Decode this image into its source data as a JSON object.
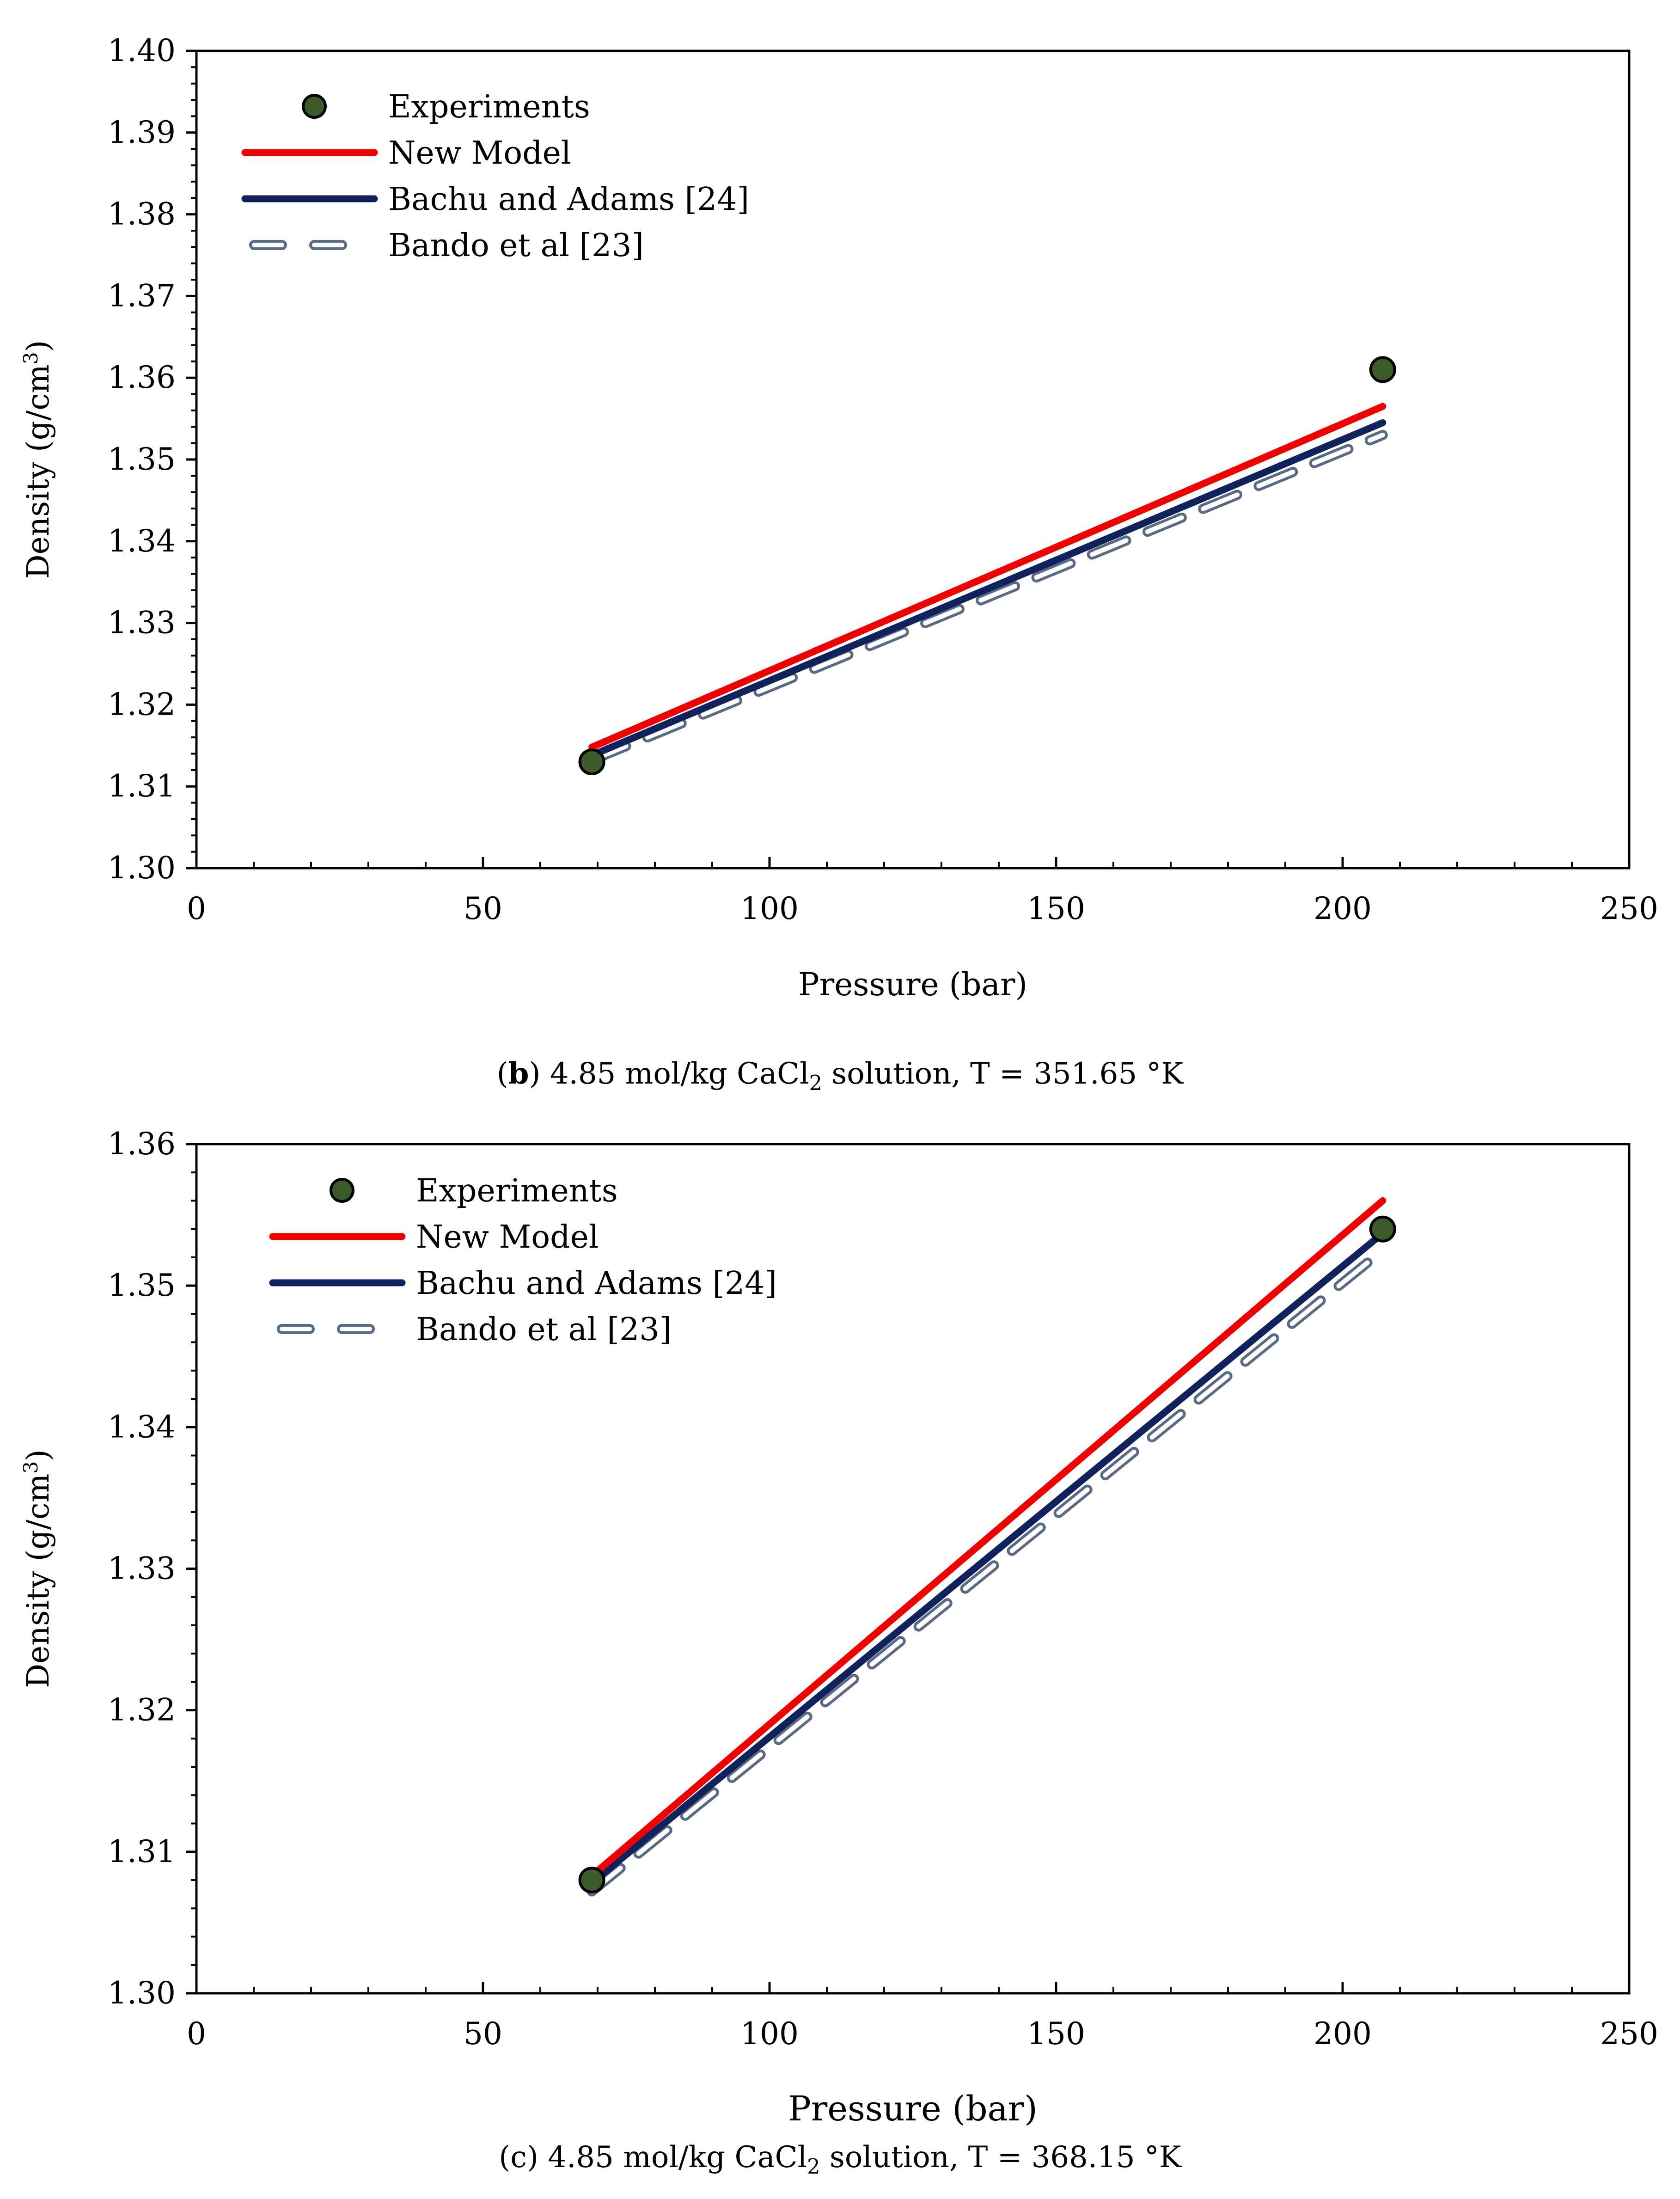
{
  "colors": {
    "experiments_fill": "#3d5a2c",
    "new_model": "#f00000",
    "bachu_adams": "#10225c",
    "bando": "#5a6a85",
    "axis": "#000000"
  },
  "captions": [
    {
      "letter": "b",
      "text": " 4.85 mol/kg CaCl",
      "sub": "2",
      "rest": " solution, T = 351.65 °K"
    },
    {
      "letter": "c",
      "text": " 4.85 mol/kg CaCl",
      "sub": "2",
      "rest": " solution, T = 368.15 °K"
    }
  ],
  "chart_data": [
    {
      "id": "b",
      "type": "line",
      "title": "(b) 4.85 mol/kg CaCl2 solution, T = 351.65 °K",
      "xlabel": "Pressure (bar)",
      "ylabel": "Density (g/cm3)",
      "xlim": [
        0,
        250
      ],
      "ylim": [
        1.3,
        1.4
      ],
      "xticks": [
        "0",
        "50",
        "100",
        "150",
        "200",
        "250"
      ],
      "yticks": [
        "1.30",
        "1.31",
        "1.32",
        "1.33",
        "1.34",
        "1.35",
        "1.36",
        "1.37",
        "1.38",
        "1.39",
        "1.40"
      ],
      "legend_position": "top-left",
      "series": [
        {
          "name": "Experiments",
          "style": "marker",
          "x": [
            69,
            207
          ],
          "y": [
            1.313,
            1.361
          ]
        },
        {
          "name": "New Model",
          "style": "solid-red",
          "x": [
            69,
            207
          ],
          "y": [
            1.3148,
            1.3565
          ]
        },
        {
          "name": "Bachu and Adams [24]",
          "style": "solid-navy",
          "x": [
            69,
            207
          ],
          "y": [
            1.3138,
            1.3545
          ]
        },
        {
          "name": "Bando et al [23]",
          "style": "dashed",
          "x": [
            69,
            207
          ],
          "y": [
            1.3132,
            1.353
          ]
        }
      ]
    },
    {
      "id": "c",
      "type": "line",
      "title": "(c) 4.85 mol/kg CaCl2 solution, T = 368.15 °K",
      "xlabel": "Pressure (bar)",
      "ylabel": "Density (g/cm3)",
      "xlim": [
        0,
        250
      ],
      "ylim": [
        1.3,
        1.36
      ],
      "xticks": [
        "0",
        "50",
        "100",
        "150",
        "200",
        "250"
      ],
      "yticks": [
        "1.30",
        "1.31",
        "1.32",
        "1.33",
        "1.34",
        "1.35",
        "1.36"
      ],
      "legend_position": "top-left",
      "series": [
        {
          "name": "Experiments",
          "style": "marker",
          "x": [
            69,
            207
          ],
          "y": [
            1.308,
            1.354
          ]
        },
        {
          "name": "New Model",
          "style": "solid-red",
          "x": [
            69,
            207
          ],
          "y": [
            1.3083,
            1.356
          ]
        },
        {
          "name": "Bachu and Adams [24]",
          "style": "solid-navy",
          "x": [
            69,
            207
          ],
          "y": [
            1.3078,
            1.3537
          ]
        },
        {
          "name": "Bando et al [23]",
          "style": "dashed",
          "x": [
            69,
            207
          ],
          "y": [
            1.3072,
            1.3525
          ]
        }
      ]
    }
  ]
}
